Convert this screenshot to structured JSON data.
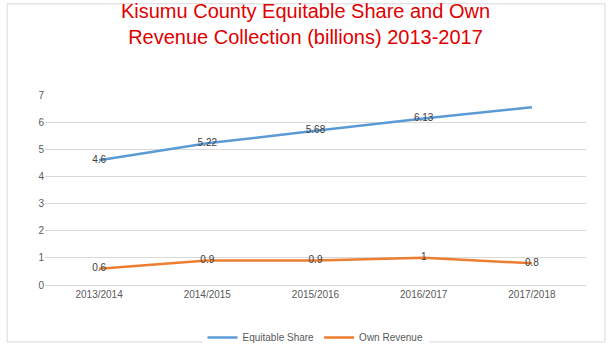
{
  "chart_data": {
    "type": "line",
    "title": "Kisumu County Equitable Share and Own\nRevenue Collection (billions) 2013-2017",
    "categories": [
      "2013/2014",
      "2014/2015",
      "2015/2016",
      "2016/2017",
      "2017/2018"
    ],
    "series": [
      {
        "name": "Equitable Share",
        "color": "#5b9bd5",
        "values": [
          4.6,
          5.22,
          5.68,
          6.13,
          6.55
        ],
        "value_labels": [
          "4.6",
          "5.22",
          "5.68",
          "6.13",
          null
        ]
      },
      {
        "name": "Own Revenue",
        "color": "#ed7d31",
        "values": [
          0.6,
          0.9,
          0.9,
          1,
          0.8
        ],
        "value_labels": [
          "0.6",
          "0.9",
          "0.9",
          "1",
          "0.8"
        ]
      }
    ],
    "ylim": [
      0,
      7
    ],
    "yticks": [
      0,
      1,
      2,
      3,
      4,
      5,
      6,
      7
    ],
    "grid": true,
    "legend": "bottom",
    "data_labels": true
  }
}
